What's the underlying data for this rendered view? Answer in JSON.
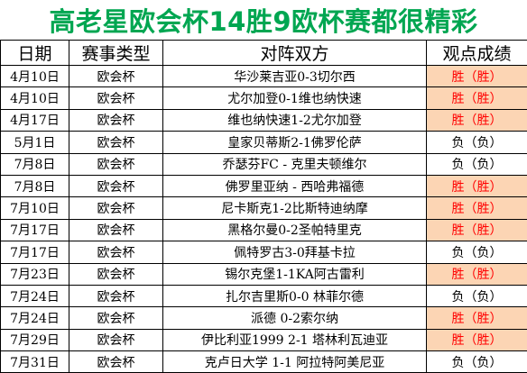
{
  "title": "高老星欧会杯14胜9欧杯赛都很精彩",
  "colors": {
    "title": "#00a651",
    "win_bg": "#fcd5b4",
    "win_text": "#ff0000",
    "lose_text": "#000000"
  },
  "headers": {
    "date": "日期",
    "type": "赛事类型",
    "match": "对阵双方",
    "result": "观点成绩"
  },
  "rows": [
    {
      "date": "4月10日",
      "type": "欧会杯",
      "match": "华沙莱吉亚0-3切尔西",
      "result": "胜（胜）",
      "status": "win"
    },
    {
      "date": "4月10日",
      "type": "欧会杯",
      "match": "尤尔加登0-1维也纳快速",
      "result": "胜（胜）",
      "status": "win"
    },
    {
      "date": "4月17日",
      "type": "欧会杯",
      "match": "维也纳快速1-2尤尔加登",
      "result": "胜（胜）",
      "status": "win"
    },
    {
      "date": "5月1日",
      "type": "欧会杯",
      "match": "皇家贝蒂斯2-1佛罗伦萨",
      "result": "负（负）",
      "status": "lose"
    },
    {
      "date": "7月8日",
      "type": "欧会杯",
      "match": "乔瑟芬FC - 克里夫顿维尔",
      "result": "负（负）",
      "status": "lose"
    },
    {
      "date": "7月8日",
      "type": "欧会杯",
      "match": "佛罗里亚纳 - 西哈弗福德",
      "result": "胜（胜）",
      "status": "win"
    },
    {
      "date": "7月10日",
      "type": "欧会杯",
      "match": "尼卡斯克1-2比斯特迪纳摩",
      "result": "胜（胜）",
      "status": "win"
    },
    {
      "date": "7月17日",
      "type": "欧会杯",
      "match": "黑格尔曼0-2圣帕特里克",
      "result": "胜（胜）",
      "status": "win"
    },
    {
      "date": "7月17日",
      "type": "欧会杯",
      "match": "佩特罗古3-0拜基卡拉",
      "result": "负（负）",
      "status": "lose"
    },
    {
      "date": "7月23日",
      "type": "欧会杯",
      "match": "锡尔克堡1-1KA阿古雷利",
      "result": "胜（胜）",
      "status": "win"
    },
    {
      "date": "7月24日",
      "type": "欧会杯",
      "match": "扎尔吉里斯0-0 林菲尔德",
      "result": "负（负）",
      "status": "lose"
    },
    {
      "date": "7月24日",
      "type": "欧会杯",
      "match": "派德 0-2索尔纳",
      "result": "胜（胜）",
      "status": "win"
    },
    {
      "date": "7月29日",
      "type": "欧会杯",
      "match": "伊比利亚1999 2-1 塔林利瓦迪亚",
      "result": "胜（胜）",
      "status": "win"
    },
    {
      "date": "7月31日",
      "type": "欧会杯",
      "match": "克卢日大学 1-1 阿拉特阿美尼亚",
      "result": "负（负）",
      "status": "lose"
    }
  ]
}
